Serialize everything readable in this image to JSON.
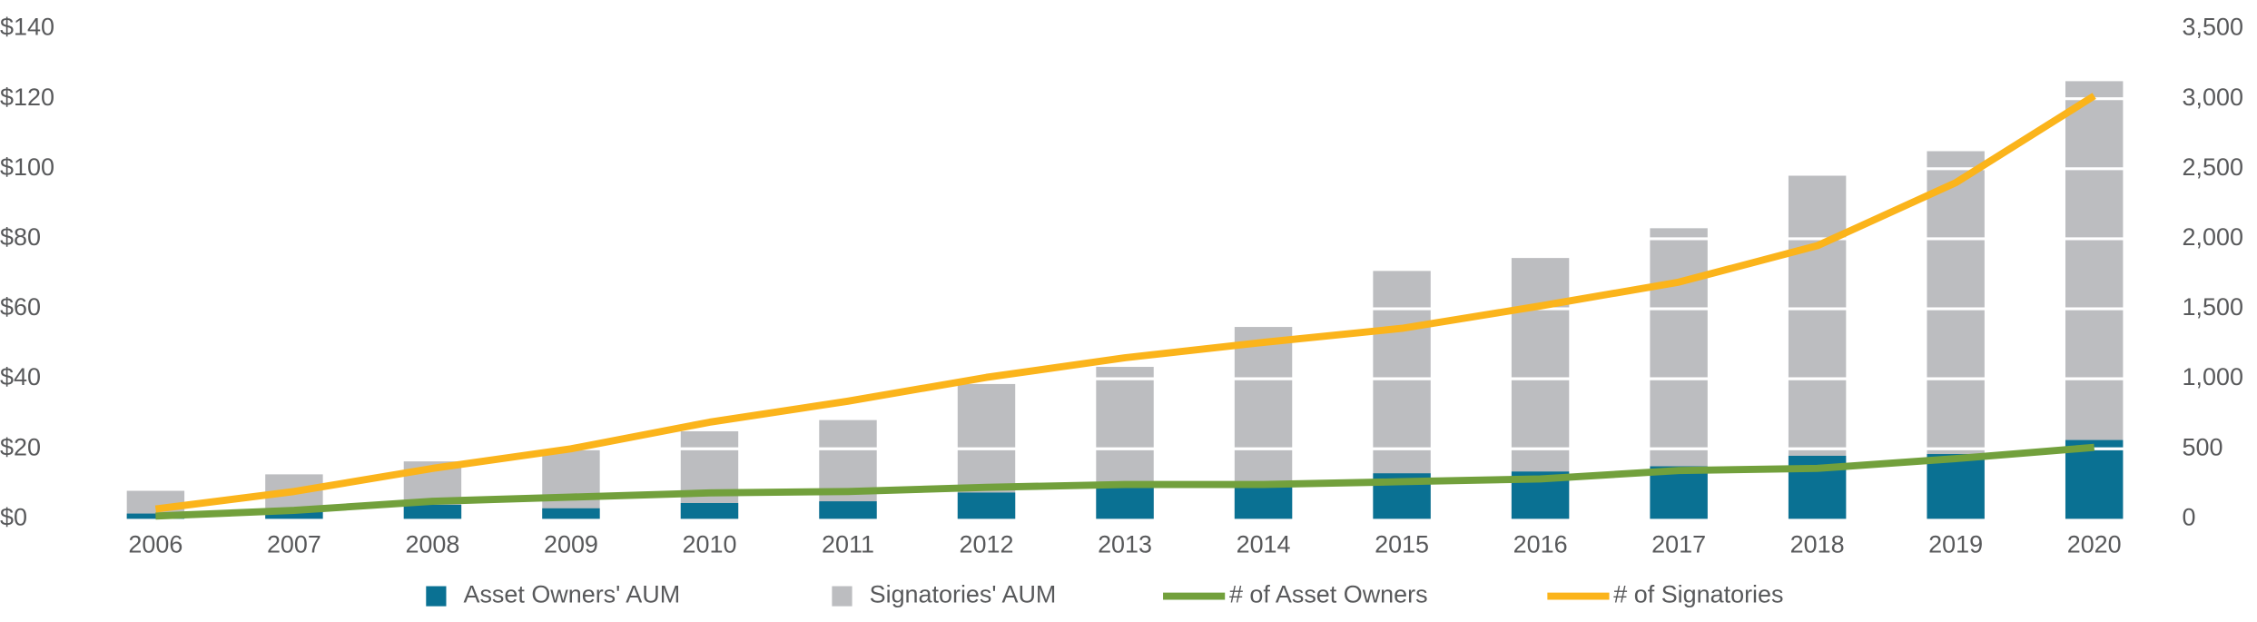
{
  "chart_data": {
    "type": "bar",
    "categories": [
      "2006",
      "2007",
      "2008",
      "2009",
      "2010",
      "2011",
      "2012",
      "2013",
      "2014",
      "2015",
      "2016",
      "2017",
      "2018",
      "2019",
      "2020"
    ],
    "series": [
      {
        "name": "Asset Owners' AUM",
        "type": "bar",
        "color": "#0a7193",
        "values": [
          1.5,
          2,
          4,
          3,
          4.5,
          5,
          7.5,
          10,
          10,
          13,
          13.5,
          15,
          18,
          18.5,
          22.5
        ]
      },
      {
        "name": "Signatories' AUM",
        "type": "bar",
        "color": "#bcbdc0",
        "values": [
          8,
          12.7,
          16.4,
          20,
          25,
          28.2,
          38.5,
          43.4,
          54.8,
          70.8,
          74.5,
          83,
          98,
          105,
          125
        ]
      },
      {
        "name": "# of  Asset Owners",
        "type": "line",
        "axis": "y2",
        "color": "#72a03c",
        "values": [
          20,
          60,
          125,
          155,
          185,
          195,
          225,
          245,
          245,
          265,
          285,
          345,
          360,
          430,
          510
        ]
      },
      {
        "name": "# of Signatories",
        "type": "line",
        "axis": "y2",
        "color": "#fbb41b",
        "values": [
          70,
          195,
          360,
          500,
          690,
          840,
          1010,
          1150,
          1260,
          1360,
          1520,
          1690,
          1950,
          2400,
          3020
        ]
      }
    ],
    "ylim": [
      0,
      140
    ],
    "yticks": [
      {
        "value": 0,
        "label": "$0"
      },
      {
        "value": 20,
        "label": "$20"
      },
      {
        "value": 40,
        "label": "$40"
      },
      {
        "value": 60,
        "label": "$60"
      },
      {
        "value": 80,
        "label": "$80"
      },
      {
        "value": 100,
        "label": "$100"
      },
      {
        "value": 120,
        "label": "$120"
      },
      {
        "value": 140,
        "label": "$140"
      }
    ],
    "y2lim": [
      0,
      3500
    ],
    "y2ticks": [
      0,
      500,
      {
        "value": 1000,
        "label": "1,000"
      },
      {
        "value": 1500,
        "label": "1,500"
      },
      {
        "value": 2000,
        "label": "2,000"
      },
      {
        "value": 2500,
        "label": "2,500"
      },
      {
        "value": 3000,
        "label": "3,000"
      },
      {
        "value": 3500,
        "label": "3,500"
      }
    ],
    "grid": true,
    "grid_color": "#ffffff",
    "legend": "bottom"
  }
}
